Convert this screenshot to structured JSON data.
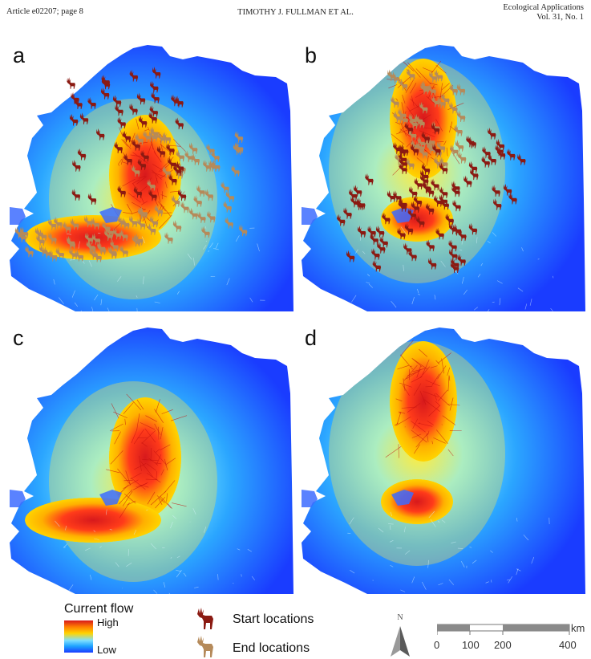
{
  "header": {
    "left": "Article e02207; page 8",
    "center": "TIMOTHY J. FULLMAN ET AL.",
    "right_line1": "Ecological Applications",
    "right_line2": "Vol. 31, No. 1"
  },
  "panels": [
    {
      "label": "a",
      "markers": "both",
      "hotspot": "southwest"
    },
    {
      "label": "b",
      "markers": "both",
      "hotspot": "north"
    },
    {
      "label": "c",
      "markers": "none",
      "hotspot": "southwest"
    },
    {
      "label": "d",
      "markers": "none",
      "hotspot": "north"
    }
  ],
  "legend": {
    "current_flow_title": "Current flow",
    "high": "High",
    "low": "Low",
    "start_label": "Start locations",
    "end_label": "End locations",
    "north": "N",
    "scale_ticks": [
      "0",
      "100",
      "200",
      "400"
    ],
    "scale_unit": "km"
  },
  "colors": {
    "high": "#d7191c",
    "mid": "#ffd400",
    "low": "#1a3cff",
    "start_marker": "#8b1a12",
    "end_marker": "#b58a5a"
  }
}
